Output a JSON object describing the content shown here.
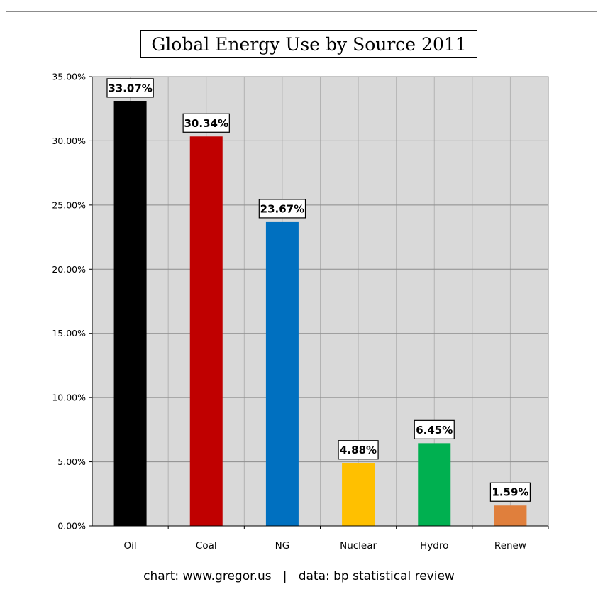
{
  "chart_data": {
    "type": "bar",
    "title": "Global Energy Use by Source 2011",
    "categories": [
      "Oil",
      "Coal",
      "NG",
      "Nuclear",
      "Hydro",
      "Renew"
    ],
    "values": [
      33.07,
      30.34,
      23.67,
      4.88,
      6.45,
      1.59
    ],
    "data_labels": [
      "33.07%",
      "30.34%",
      "23.67%",
      "4.88%",
      "6.45%",
      "1.59%"
    ],
    "colors": [
      "#000000",
      "#c00000",
      "#0070c0",
      "#ffc000",
      "#00b050",
      "#e07f3c"
    ],
    "yticks": [
      "0.00%",
      "5.00%",
      "10.00%",
      "15.00%",
      "20.00%",
      "25.00%",
      "30.00%",
      "35.00%"
    ],
    "ylim": [
      0,
      35
    ],
    "grid": true,
    "plot_background": "#d9d9d9",
    "xlabel": "",
    "ylabel": "",
    "footer": "chart: www.gregor.us   |   data: bp statistical review"
  }
}
